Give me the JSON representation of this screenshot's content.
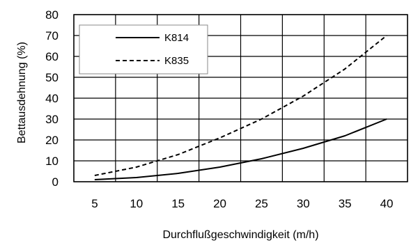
{
  "chart_data": {
    "type": "line",
    "xlabel": "Durchflußgeschwindigkeit (m/h)",
    "ylabel": "Bettausdehnung (%)",
    "xlim": [
      2.5,
      42.5
    ],
    "ylim": [
      0,
      80
    ],
    "x_ticks": [
      "5",
      "10",
      "15",
      "20",
      "25",
      "30",
      "35",
      "40"
    ],
    "y_ticks": [
      "0",
      "10",
      "20",
      "30",
      "40",
      "50",
      "60",
      "70",
      "80"
    ],
    "grid": true,
    "legend_position": "top-left",
    "series": [
      {
        "name": "K814",
        "style": "solid",
        "color": "#000000",
        "x": [
          5,
          10,
          15,
          20,
          25,
          30,
          35,
          40
        ],
        "y": [
          1,
          2,
          4,
          7,
          11,
          16,
          22,
          30
        ]
      },
      {
        "name": "K835",
        "style": "dashed",
        "color": "#000000",
        "x": [
          5,
          10,
          15,
          20,
          25,
          30,
          35,
          40
        ],
        "y": [
          3,
          7,
          13,
          21,
          30,
          41,
          54,
          70
        ]
      }
    ]
  }
}
